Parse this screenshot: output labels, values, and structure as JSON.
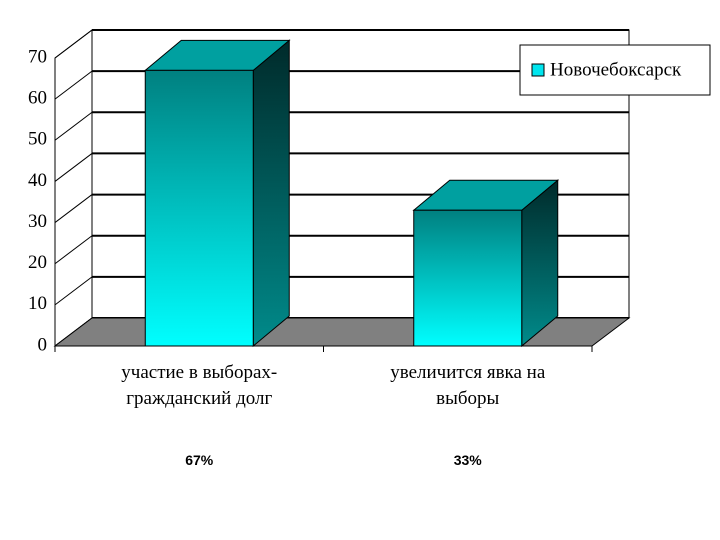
{
  "chart_data": {
    "type": "bar3d",
    "categories": [
      "участие в выборах-гражданский долг",
      "увеличится явка на выборы"
    ],
    "series": [
      {
        "name": "Новочебоксарск",
        "color": "#00e5ee",
        "values": [
          67,
          33
        ],
        "value_labels": [
          "67%",
          "33%"
        ]
      }
    ],
    "ylim": [
      0,
      70
    ],
    "yticks": [
      0,
      10,
      20,
      30,
      40,
      50,
      60,
      70
    ],
    "grid": true,
    "legend": "top-right"
  }
}
